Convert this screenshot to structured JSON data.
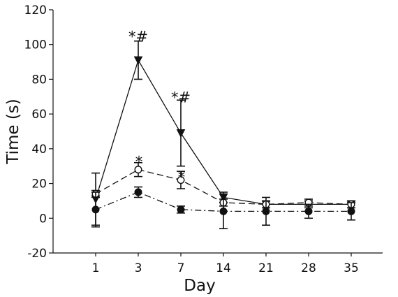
{
  "chart_data": {
    "type": "line",
    "title": "",
    "xlabel": "Day",
    "ylabel": "Time (s)",
    "x": [
      "1",
      "3",
      "7",
      "14",
      "21",
      "28",
      "35"
    ],
    "ylim": [
      -20,
      120
    ],
    "yticks": [
      "120",
      "100",
      "80",
      "60",
      "40",
      "20",
      "0",
      "-20"
    ],
    "grid": false,
    "series": [
      {
        "marker": "filled-triangle-down",
        "line": "solid",
        "values": [
          11,
          91,
          49,
          12,
          8,
          8,
          8
        ],
        "err": [
          15,
          11,
          19,
          3,
          2,
          2,
          2
        ]
      },
      {
        "marker": "open-circle",
        "line": "dashed",
        "values": [
          14,
          28,
          22,
          9,
          8,
          9,
          8
        ],
        "err": [
          2,
          4,
          5,
          2,
          2,
          2,
          2
        ]
      },
      {
        "marker": "filled-circle",
        "line": "dash-dot",
        "values": [
          5,
          15,
          5,
          4,
          4,
          4,
          4
        ],
        "err": [
          10,
          3,
          2,
          10,
          8,
          4,
          5
        ]
      }
    ],
    "annotations": [
      {
        "text": "*#",
        "x": "3",
        "y": 105
      },
      {
        "text": "*#",
        "x": "7",
        "y": 70
      },
      {
        "text": "*",
        "x": "3",
        "y": 33
      },
      {
        "text": "*",
        "x": "7",
        "y": 24
      }
    ]
  }
}
